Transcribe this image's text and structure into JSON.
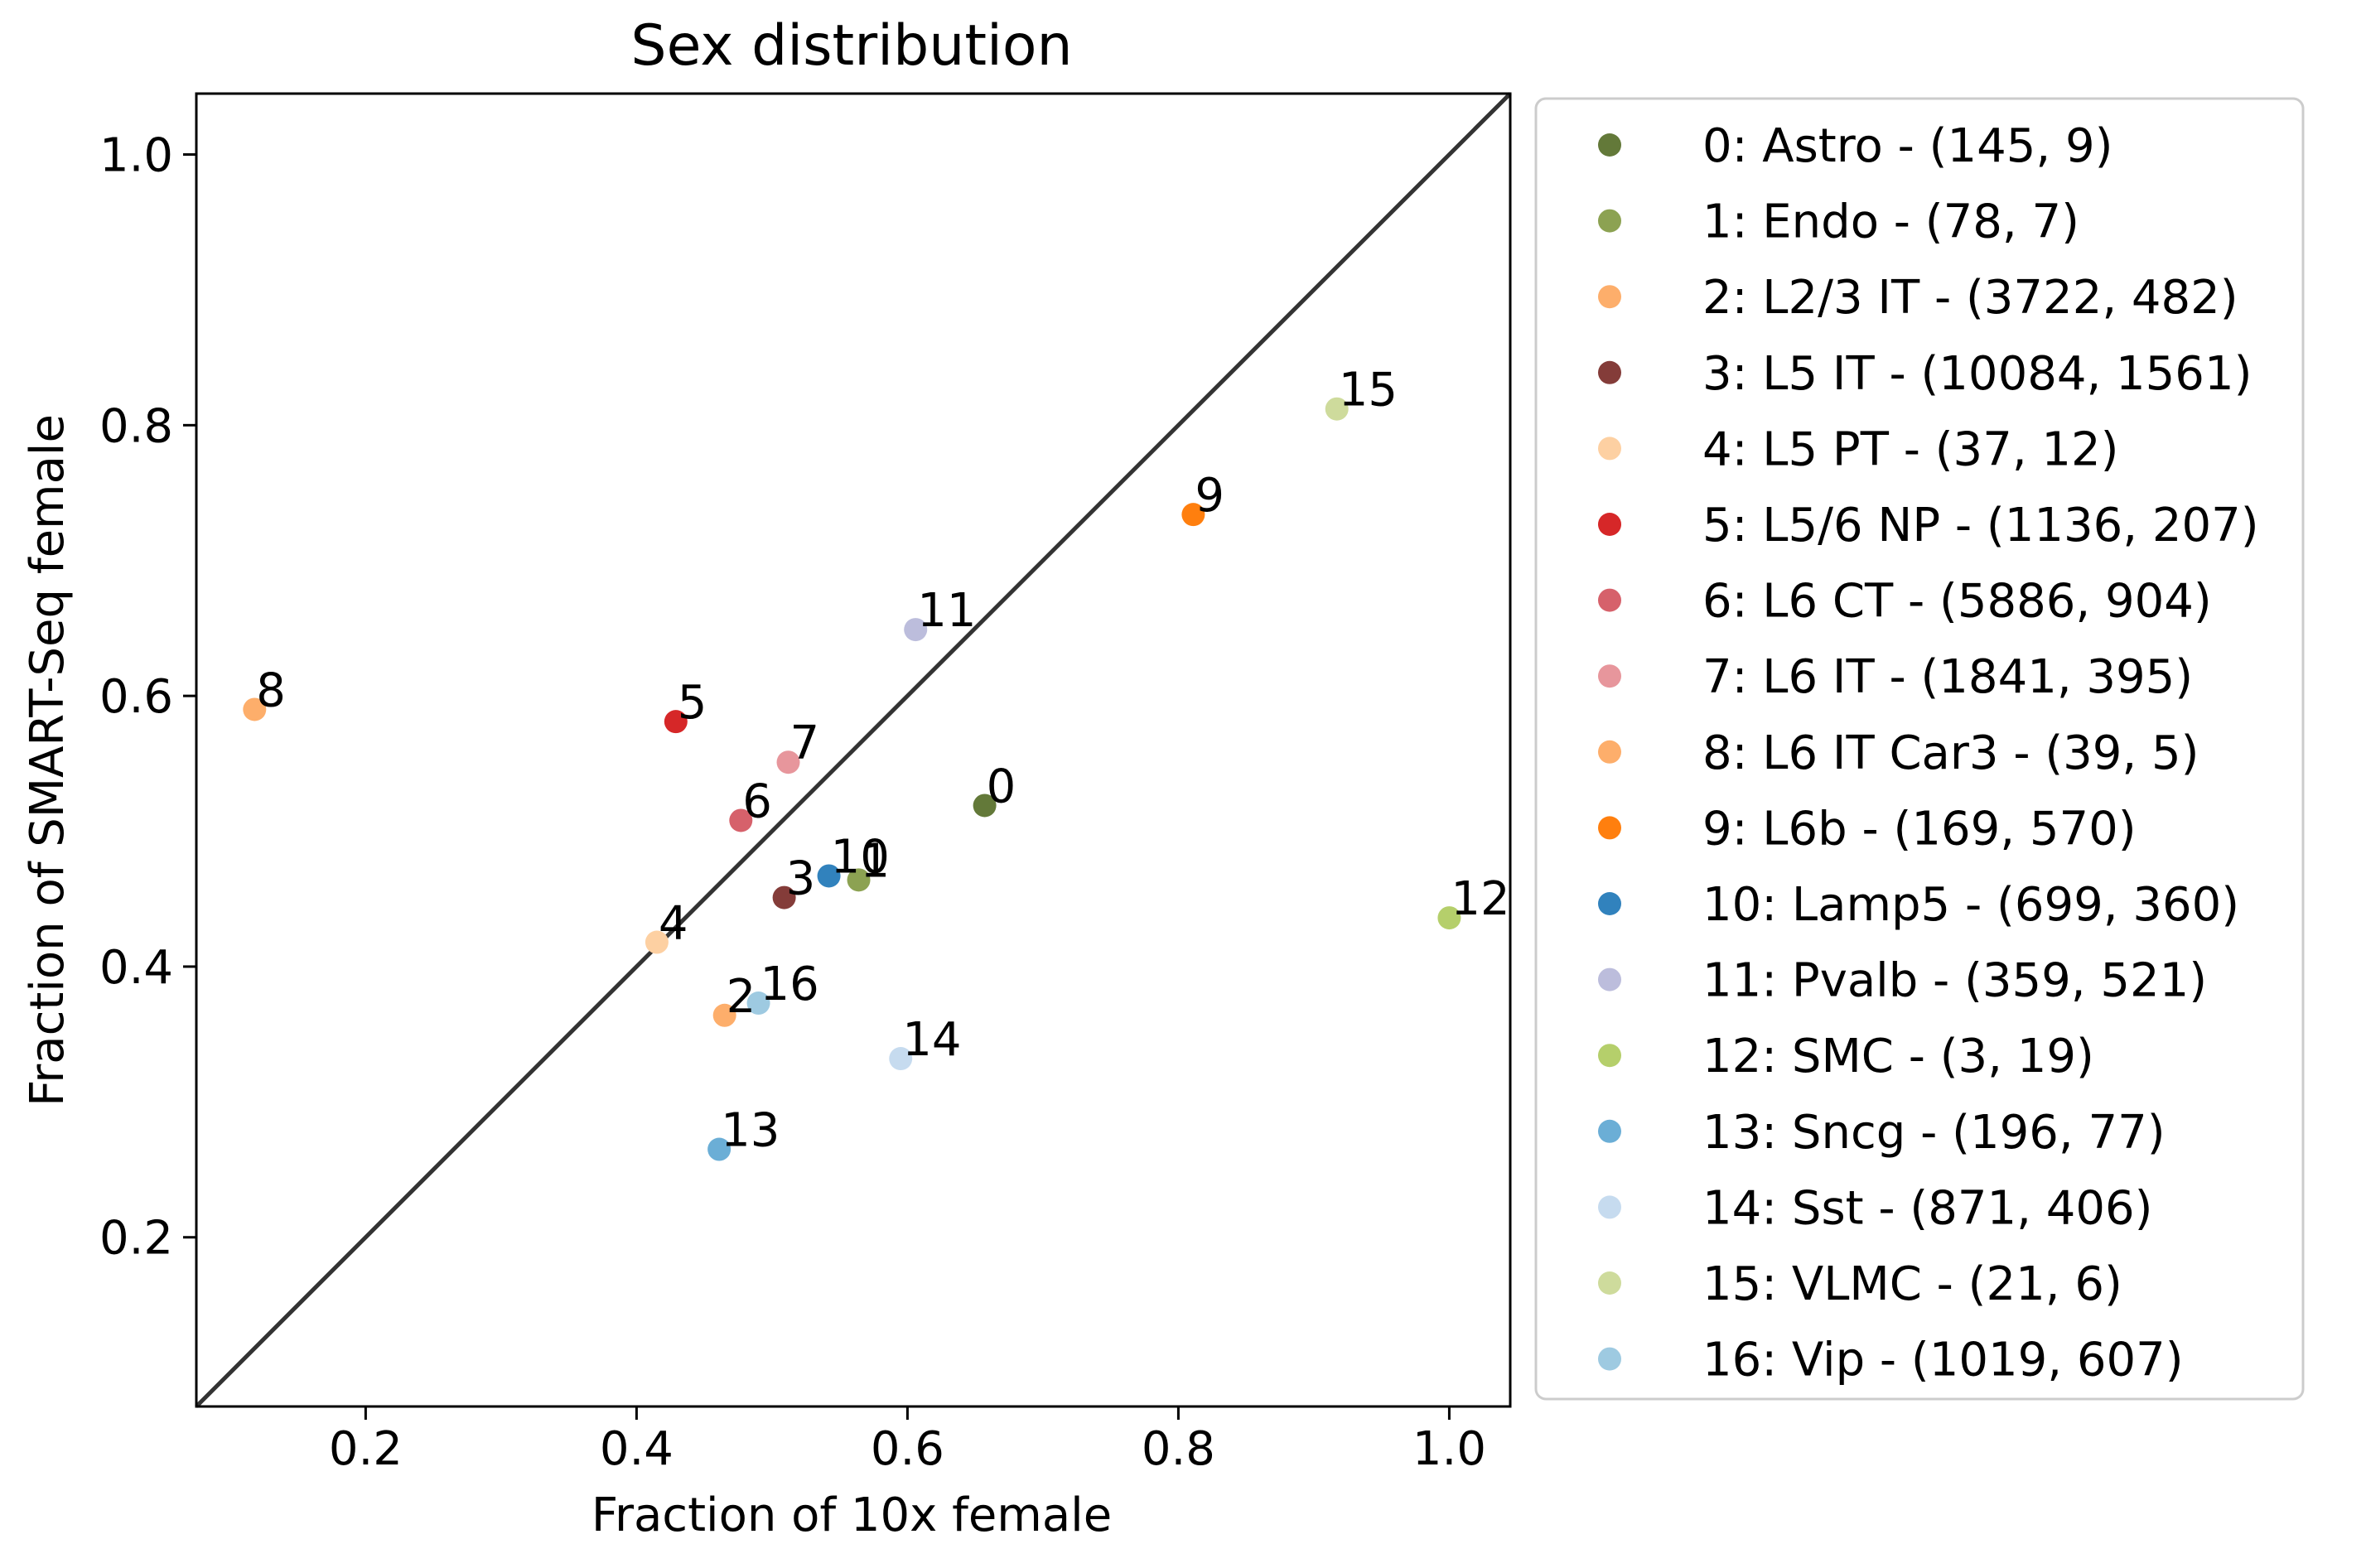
{
  "chart_data": {
    "type": "scatter",
    "title": "Sex distribution",
    "xlabel": "Fraction of 10x female",
    "ylabel": "Fraction of SMART-Seq female",
    "xlim": [
      0.075,
      1.045
    ],
    "ylim": [
      0.075,
      1.045
    ],
    "xticks": [
      0.2,
      0.4,
      0.6,
      0.8,
      1.0
    ],
    "yticks": [
      0.2,
      0.4,
      0.6,
      0.8,
      1.0
    ],
    "tick_labels": [
      "0.2",
      "0.4",
      "0.6",
      "0.8",
      "1.0"
    ],
    "grid": false,
    "diagonal_line": true,
    "legend_position": "outside-right",
    "points": [
      {
        "id": "0",
        "legend": "0: Astro - (145, 9)",
        "x": 0.657,
        "y": 0.519,
        "color": "#637939"
      },
      {
        "id": "1",
        "legend": "1: Endo - (78, 7)",
        "x": 0.564,
        "y": 0.464,
        "color": "#8ca252"
      },
      {
        "id": "2",
        "legend": "2: L2/3 IT - (3722, 482)",
        "x": 0.465,
        "y": 0.364,
        "color": "#fdae6b"
      },
      {
        "id": "3",
        "legend": "3: L5 IT - (10084, 1561)",
        "x": 0.509,
        "y": 0.451,
        "color": "#843c39"
      },
      {
        "id": "4",
        "legend": "4: L5 PT - (37, 12)",
        "x": 0.415,
        "y": 0.418,
        "color": "#fdd0a2"
      },
      {
        "id": "5",
        "legend": "5: L5/6 NP - (1136, 207)",
        "x": 0.429,
        "y": 0.581,
        "color": "#d62728"
      },
      {
        "id": "6",
        "legend": "6: L6 CT - (5886, 904)",
        "x": 0.477,
        "y": 0.508,
        "color": "#d6616b"
      },
      {
        "id": "7",
        "legend": "7: L6 IT - (1841, 395)",
        "x": 0.512,
        "y": 0.551,
        "color": "#e7969c"
      },
      {
        "id": "8",
        "legend": "8: L6 IT Car3 - (39, 5)",
        "x": 0.118,
        "y": 0.59,
        "color": "#fdae6b"
      },
      {
        "id": "9",
        "legend": "9: L6b - (169, 570)",
        "x": 0.811,
        "y": 0.734,
        "color": "#ff7f0e"
      },
      {
        "id": "10",
        "legend": "10: Lamp5 - (699, 360)",
        "x": 0.542,
        "y": 0.467,
        "color": "#3182bd"
      },
      {
        "id": "11",
        "legend": "11: Pvalb - (359, 521)",
        "x": 0.606,
        "y": 0.649,
        "color": "#bcbddc"
      },
      {
        "id": "12",
        "legend": "12: SMC - (3, 19)",
        "x": 1.0,
        "y": 0.436,
        "color": "#b5cf6b"
      },
      {
        "id": "13",
        "legend": "13: Sncg - (196, 77)",
        "x": 0.461,
        "y": 0.265,
        "color": "#6baed6"
      },
      {
        "id": "14",
        "legend": "14: Sst - (871, 406)",
        "x": 0.595,
        "y": 0.332,
        "color": "#c6dbef"
      },
      {
        "id": "15",
        "legend": "15: VLMC - (21, 6)",
        "x": 0.917,
        "y": 0.812,
        "color": "#cedb9c"
      },
      {
        "id": "16",
        "legend": "16: Vip - (1019, 607)",
        "x": 0.49,
        "y": 0.373,
        "color": "#9ecae1"
      }
    ]
  }
}
